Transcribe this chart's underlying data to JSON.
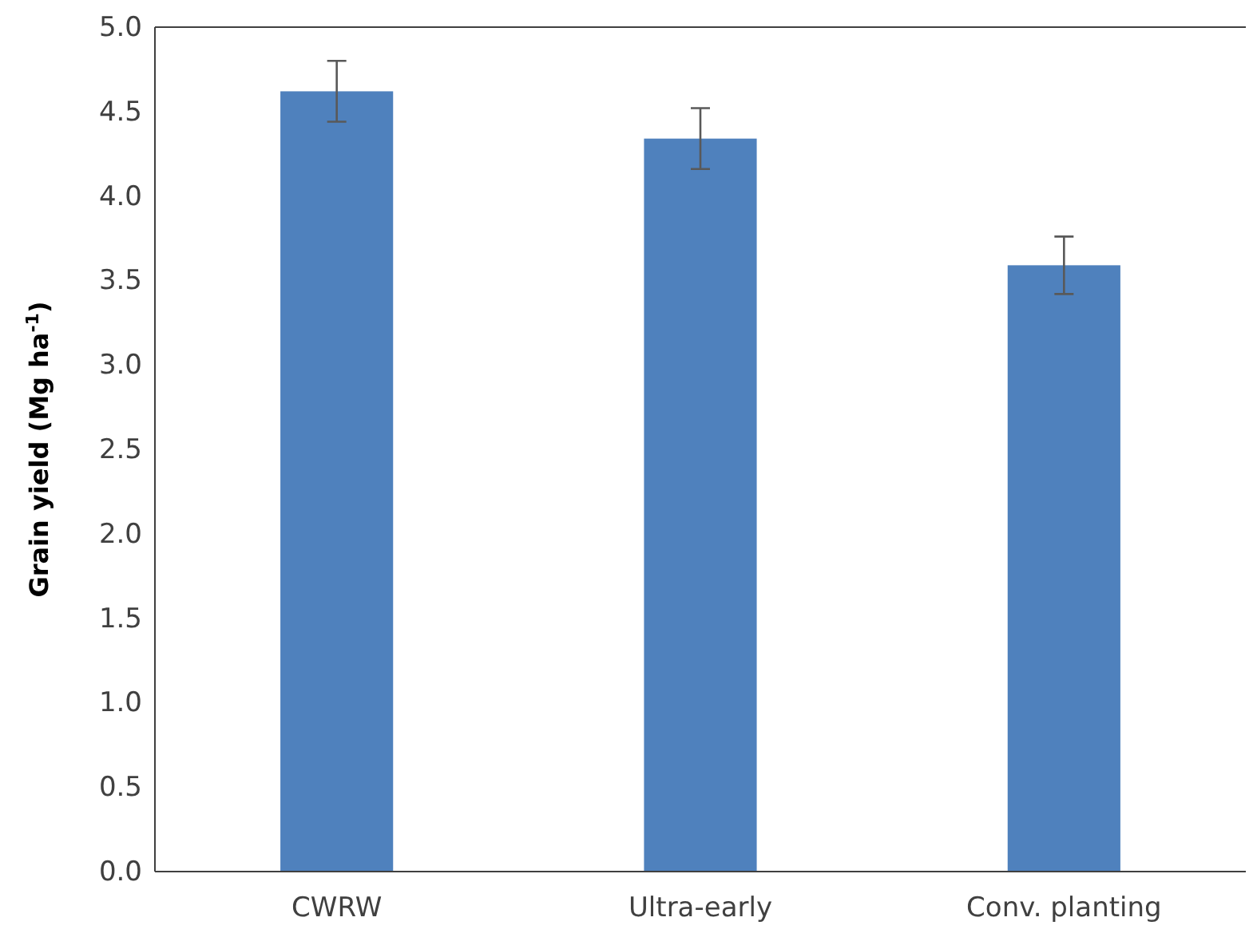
{
  "chart_data": {
    "type": "bar",
    "ylabel": "Grain yield (Mg ha$^{-1}$)",
    "categories": [
      "CWRW",
      "Ultra-early",
      "Conv. planting"
    ],
    "values": [
      4.62,
      4.34,
      3.59
    ],
    "errors": [
      0.18,
      0.18,
      0.17
    ],
    "color": "#4f81bd",
    "ylim": [
      0,
      5
    ],
    "yticks": [
      {
        "value": 0,
        "label": "0.0"
      },
      {
        "value": 0.5,
        "label": "0.5"
      },
      {
        "value": 1,
        "label": "1.0"
      },
      {
        "value": 1.5,
        "label": "1.5"
      },
      {
        "value": 2,
        "label": "2.0"
      },
      {
        "value": 2.5,
        "label": "2.5"
      },
      {
        "value": 3,
        "label": "3.0"
      },
      {
        "value": 3.5,
        "label": "3.5"
      },
      {
        "value": 4,
        "label": "4.0"
      },
      {
        "value": 4.5,
        "label": "4.5"
      },
      {
        "value": 5,
        "label": "5.0"
      }
    ],
    "grid": false
  }
}
